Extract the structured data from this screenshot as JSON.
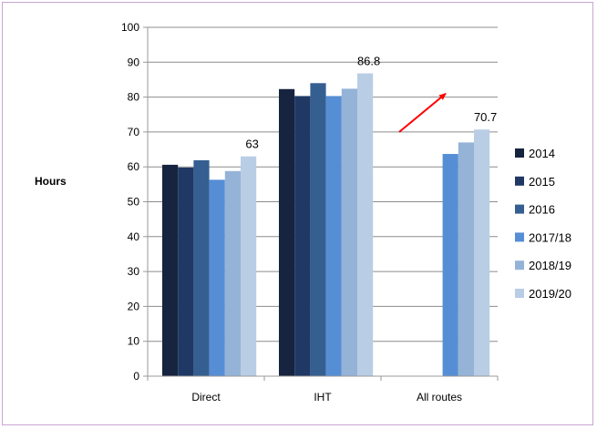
{
  "chart_data": {
    "type": "bar",
    "ylabel": "Hours",
    "xlabel": "",
    "ylim": [
      0,
      100
    ],
    "y_ticks": [
      0,
      10,
      20,
      30,
      40,
      50,
      60,
      70,
      80,
      90,
      100
    ],
    "grid": true,
    "legend_position": "right",
    "categories": [
      "Direct",
      "IHT",
      "All routes"
    ],
    "series": [
      {
        "name": "2014",
        "color": "#17243f",
        "values": [
          60.6,
          82.3,
          null
        ]
      },
      {
        "name": "2015",
        "color": "#1f3864",
        "values": [
          59.8,
          80.3,
          null
        ]
      },
      {
        "name": "2016",
        "color": "#365f91",
        "values": [
          61.9,
          84.0,
          null
        ]
      },
      {
        "name": "2017/18",
        "color": "#558ed5",
        "values": [
          56.3,
          80.3,
          63.7
        ]
      },
      {
        "name": "2018/19",
        "color": "#95b3d7",
        "values": [
          58.8,
          82.4,
          67.0
        ]
      },
      {
        "name": "2019/20",
        "color": "#b9cde5",
        "values": [
          63,
          86.8,
          70.7
        ]
      }
    ],
    "data_labels": [
      {
        "text": "63",
        "category": "Direct",
        "series": "2019/20"
      },
      {
        "text": "86.8",
        "category": "IHT",
        "series": "2019/20"
      },
      {
        "text": "70.7",
        "category": "All routes",
        "series": "2019/20"
      }
    ],
    "annotation": {
      "type": "arrow",
      "color": "#ff0000",
      "category": "All routes",
      "direction": "up-right"
    }
  }
}
